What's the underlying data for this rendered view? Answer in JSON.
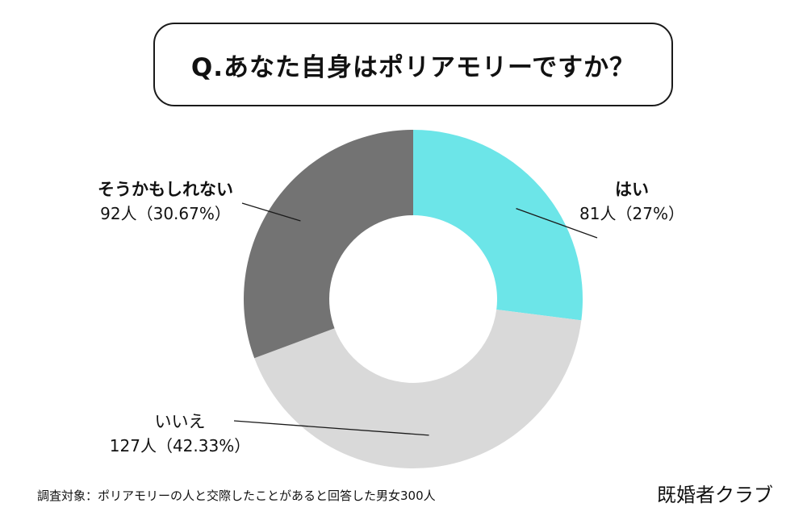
{
  "title": "Q.あなた自身はポリアモリーですか？",
  "footnote": "調査対象：ポリアモリーの人と交際したことがあると回答した男女300人",
  "brand": "既婚者クラブ",
  "chart_data": {
    "type": "pie",
    "donut": true,
    "slices": [
      {
        "label": "はい",
        "count": "81人",
        "percent_text": "（27%）",
        "value": 27,
        "color": "#6ce5e8"
      },
      {
        "label": "いいえ",
        "count": "127人",
        "percent_text": "（42.33%）",
        "value": 42.33,
        "color": "#d9d9d9"
      },
      {
        "label": "そうかもしれない",
        "count": "92人",
        "percent_text": "（30.67%）",
        "value": 30.67,
        "color": "#737373"
      }
    ]
  }
}
